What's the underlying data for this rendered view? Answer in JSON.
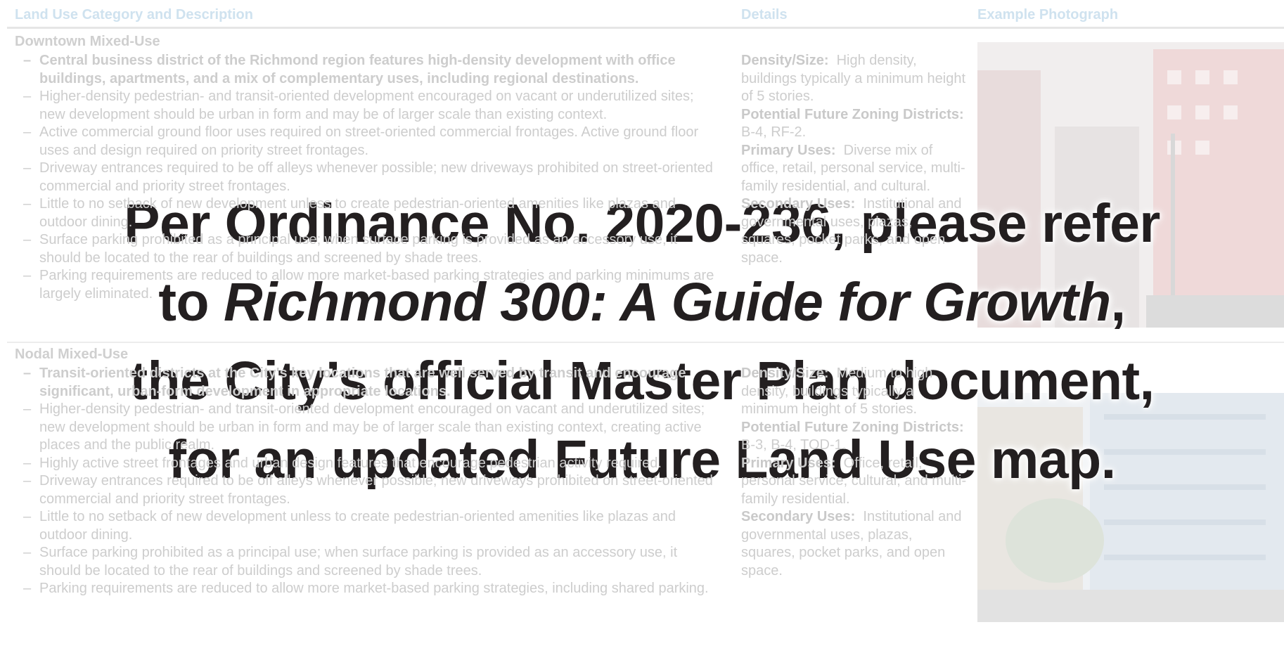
{
  "header": {
    "columns": [
      "Land Use Category and Description",
      "Details",
      "Example Photograph"
    ]
  },
  "rows": [
    {
      "category": "Downtown Mixed-Use",
      "bullets": [
        {
          "text": "Central business district of the Richmond region features high-density development with office buildings, apartments, and a mix of complementary uses, including regional destinations.",
          "bold": true
        },
        {
          "text": "Higher-density pedestrian- and transit-oriented development encouraged on vacant or underutilized sites; new development should be urban in form and may be of larger scale than existing context."
        },
        {
          "text": "Active commercial ground floor uses required on street-oriented commercial frontages. Active ground floor uses and design required on priority street frontages."
        },
        {
          "text": "Driveway entrances required to be off alleys whenever possible; new driveways prohibited on street-oriented commercial and priority street frontages."
        },
        {
          "text": "Little to no setback of new development unless to create pedestrian-oriented amenities like plazas and outdoor dining."
        },
        {
          "text": "Surface parking prohibited as a principal use; when surface parking is provided as an accessory use, it should be located to the rear of buildings and screened by shade trees."
        },
        {
          "text": "Parking requirements are reduced to allow more market-based parking strategies and parking minimums are largely eliminated."
        }
      ],
      "details": [
        {
          "label": "Density/Size:",
          "text": "High density, buildings typically a minimum height of 5 stories."
        },
        {
          "label": "Potential Future Zoning Districts:",
          "text": "B-4, RF-2."
        },
        {
          "label": "Primary Uses:",
          "text": "Diverse mix of office, retail, personal service, multi-family residential, and cultural."
        },
        {
          "label": "Secondary Uses:",
          "text": "Institutional and governmental uses, plazas, squares, pocket parks, and open space."
        }
      ]
    },
    {
      "category": "Nodal Mixed-Use",
      "bullets": [
        {
          "text": "Transit-oriented districts at the City's key locations that are well served by transit and encourage significant, urban-form development in appropriate locations.",
          "bold": true
        },
        {
          "text": "Higher-density pedestrian- and transit-oriented development encouraged on vacant and underutilized sites; new development should be urban in form and may be of larger scale than existing context, creating active places and the public realm."
        },
        {
          "text": "Highly active street frontages and urban design features that encourage pedestrian activity required."
        },
        {
          "text": "Driveway entrances required to be off alleys whenever possible; new driveways prohibited on street-oriented commercial and priority street frontages."
        },
        {
          "text": "Little to no setback of new development unless to create pedestrian-oriented amenities like plazas and outdoor dining."
        },
        {
          "text": "Surface parking prohibited as a principal use; when surface parking is provided as an accessory use, it should be located to the rear of buildings and screened by shade trees."
        },
        {
          "text": "Parking requirements are reduced to allow more market-based parking strategies, including shared parking."
        }
      ],
      "details": [
        {
          "label": "Density/Size:",
          "text": "Medium to high density, buildings typically a minimum height of 5 stories."
        },
        {
          "label": "Potential Future Zoning Districts:",
          "text": "B-3, B-4, TOD-1."
        },
        {
          "label": "Primary Uses:",
          "text": "Office, retail, personal service, cultural, and multi-family residential."
        },
        {
          "label": "Secondary Uses:",
          "text": "Institutional and governmental uses, plazas, squares, pocket parks, and open space."
        }
      ]
    }
  ],
  "notice": {
    "lines": [
      [
        {
          "text": "Per Ordinance No. 2020-236, please refer"
        }
      ],
      [
        {
          "text": "to "
        },
        {
          "text": "Richmond 300: A Guide for Growth",
          "italic": true
        },
        {
          "text": ","
        }
      ],
      [
        {
          "text": "the City’s official Master Plan document,"
        }
      ],
      [
        {
          "text": "for an updated Future Land Use map."
        }
      ]
    ]
  }
}
